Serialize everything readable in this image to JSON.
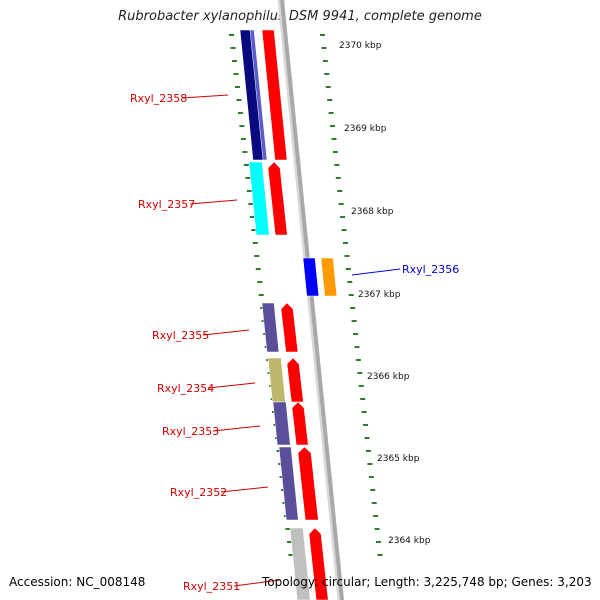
{
  "title": "Rubrobacter xylanophilus DSM 9941, complete genome",
  "footer": {
    "accession": "Accession: NC_008148",
    "summary": "Topology: circular; Length: 3,225,748 bp; Genes: 3,203"
  },
  "scale_labels": [
    "2370 kbp",
    "2369 kbp",
    "2368 kbp",
    "2367 kbp",
    "2366 kbp",
    "2365 kbp",
    "2364 kbp"
  ],
  "colors": {
    "backbone": "#a8a8a8",
    "tick": "#2e7d2e",
    "forward_gene": "#ff0000",
    "label_red": "#cc0000",
    "label_blue": "#0000cc",
    "gene_navy": "#0a0a80",
    "gene_cyan": "#00ffff",
    "gene_slate": "#5a4f9a",
    "gene_khaki": "#bdb76b",
    "gene_blue": "#0000ff",
    "gene_orange": "#ff9900",
    "gene_gray": "#c0c0c0"
  },
  "genes": [
    {
      "label": "Rxyl_2358",
      "color": "#1a1a8c"
    },
    {
      "label": "Rxyl_2357",
      "color": "#00ffff"
    },
    {
      "label": "Rxyl_2356",
      "color": "#0000ff"
    },
    {
      "label": "Rxyl_2355",
      "color": "#5a4f9a"
    },
    {
      "label": "Rxyl_2354",
      "color": "#bdb76b"
    },
    {
      "label": "Rxyl_2353",
      "color": "#5a4f9a"
    },
    {
      "label": "Rxyl_2352",
      "color": "#5a4f9a"
    },
    {
      "label": "Rxyl_2351",
      "color": "#c0c0c0"
    }
  ]
}
